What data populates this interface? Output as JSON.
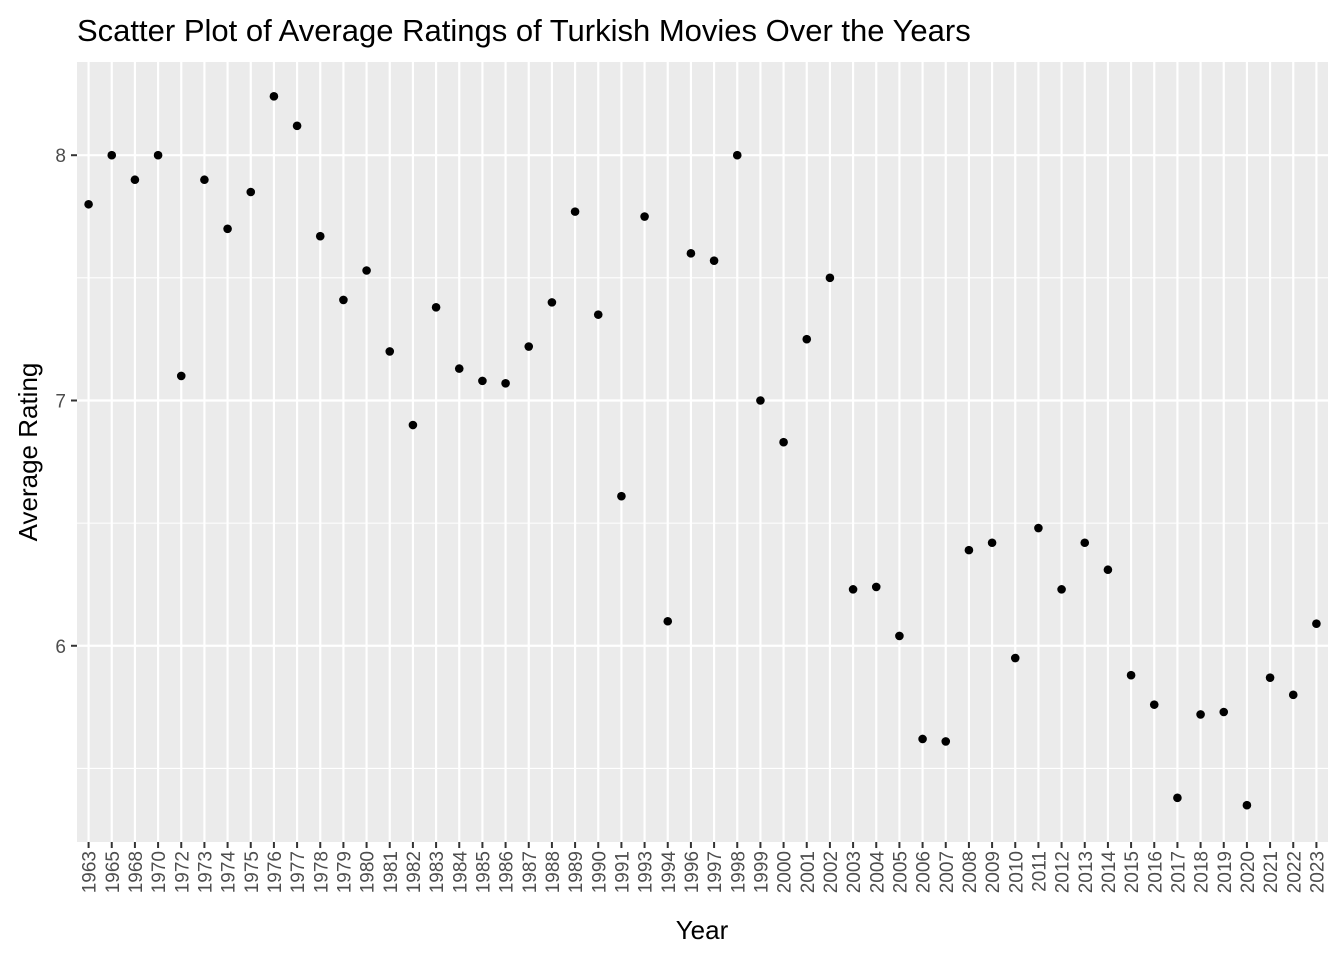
{
  "chart_data": {
    "type": "scatter",
    "title": "Scatter Plot of Average Ratings of Turkish Movies Over the Years",
    "xlabel": "Year",
    "ylabel": "Average Rating",
    "x_axis_kind": "discrete",
    "ylim": [
      5.2,
      8.38
    ],
    "y_ticks": [
      6,
      7,
      8
    ],
    "grid": true,
    "legend": "none",
    "colors": {
      "panel": "#ebebeb",
      "grid": "#ffffff",
      "point": "#000000",
      "tick": "#4d4d4d"
    },
    "categories": [
      "1963",
      "1965",
      "1968",
      "1970",
      "1972",
      "1973",
      "1974",
      "1975",
      "1976",
      "1977",
      "1978",
      "1979",
      "1980",
      "1981",
      "1982",
      "1983",
      "1984",
      "1985",
      "1986",
      "1987",
      "1988",
      "1989",
      "1990",
      "1991",
      "1993",
      "1994",
      "1996",
      "1997",
      "1998",
      "1999",
      "2000",
      "2001",
      "2002",
      "2003",
      "2004",
      "2005",
      "2006",
      "2007",
      "2008",
      "2009",
      "2010",
      "2011",
      "2012",
      "2013",
      "2014",
      "2015",
      "2016",
      "2017",
      "2018",
      "2019",
      "2020",
      "2021",
      "2022",
      "2023"
    ],
    "values": [
      7.8,
      8.0,
      7.9,
      8.0,
      7.1,
      7.9,
      7.7,
      7.85,
      8.24,
      8.12,
      7.67,
      7.41,
      7.53,
      7.2,
      6.9,
      7.38,
      7.13,
      7.08,
      7.07,
      7.22,
      7.4,
      7.77,
      7.35,
      6.61,
      7.75,
      6.1,
      7.6,
      7.57,
      8.0,
      7.0,
      6.83,
      7.25,
      7.5,
      6.23,
      6.24,
      6.04,
      5.62,
      5.61,
      6.39,
      6.42,
      5.95,
      6.48,
      6.23,
      6.42,
      6.31,
      5.88,
      5.76,
      5.38,
      5.72,
      5.73,
      5.35,
      5.87,
      5.8,
      6.09
    ]
  }
}
